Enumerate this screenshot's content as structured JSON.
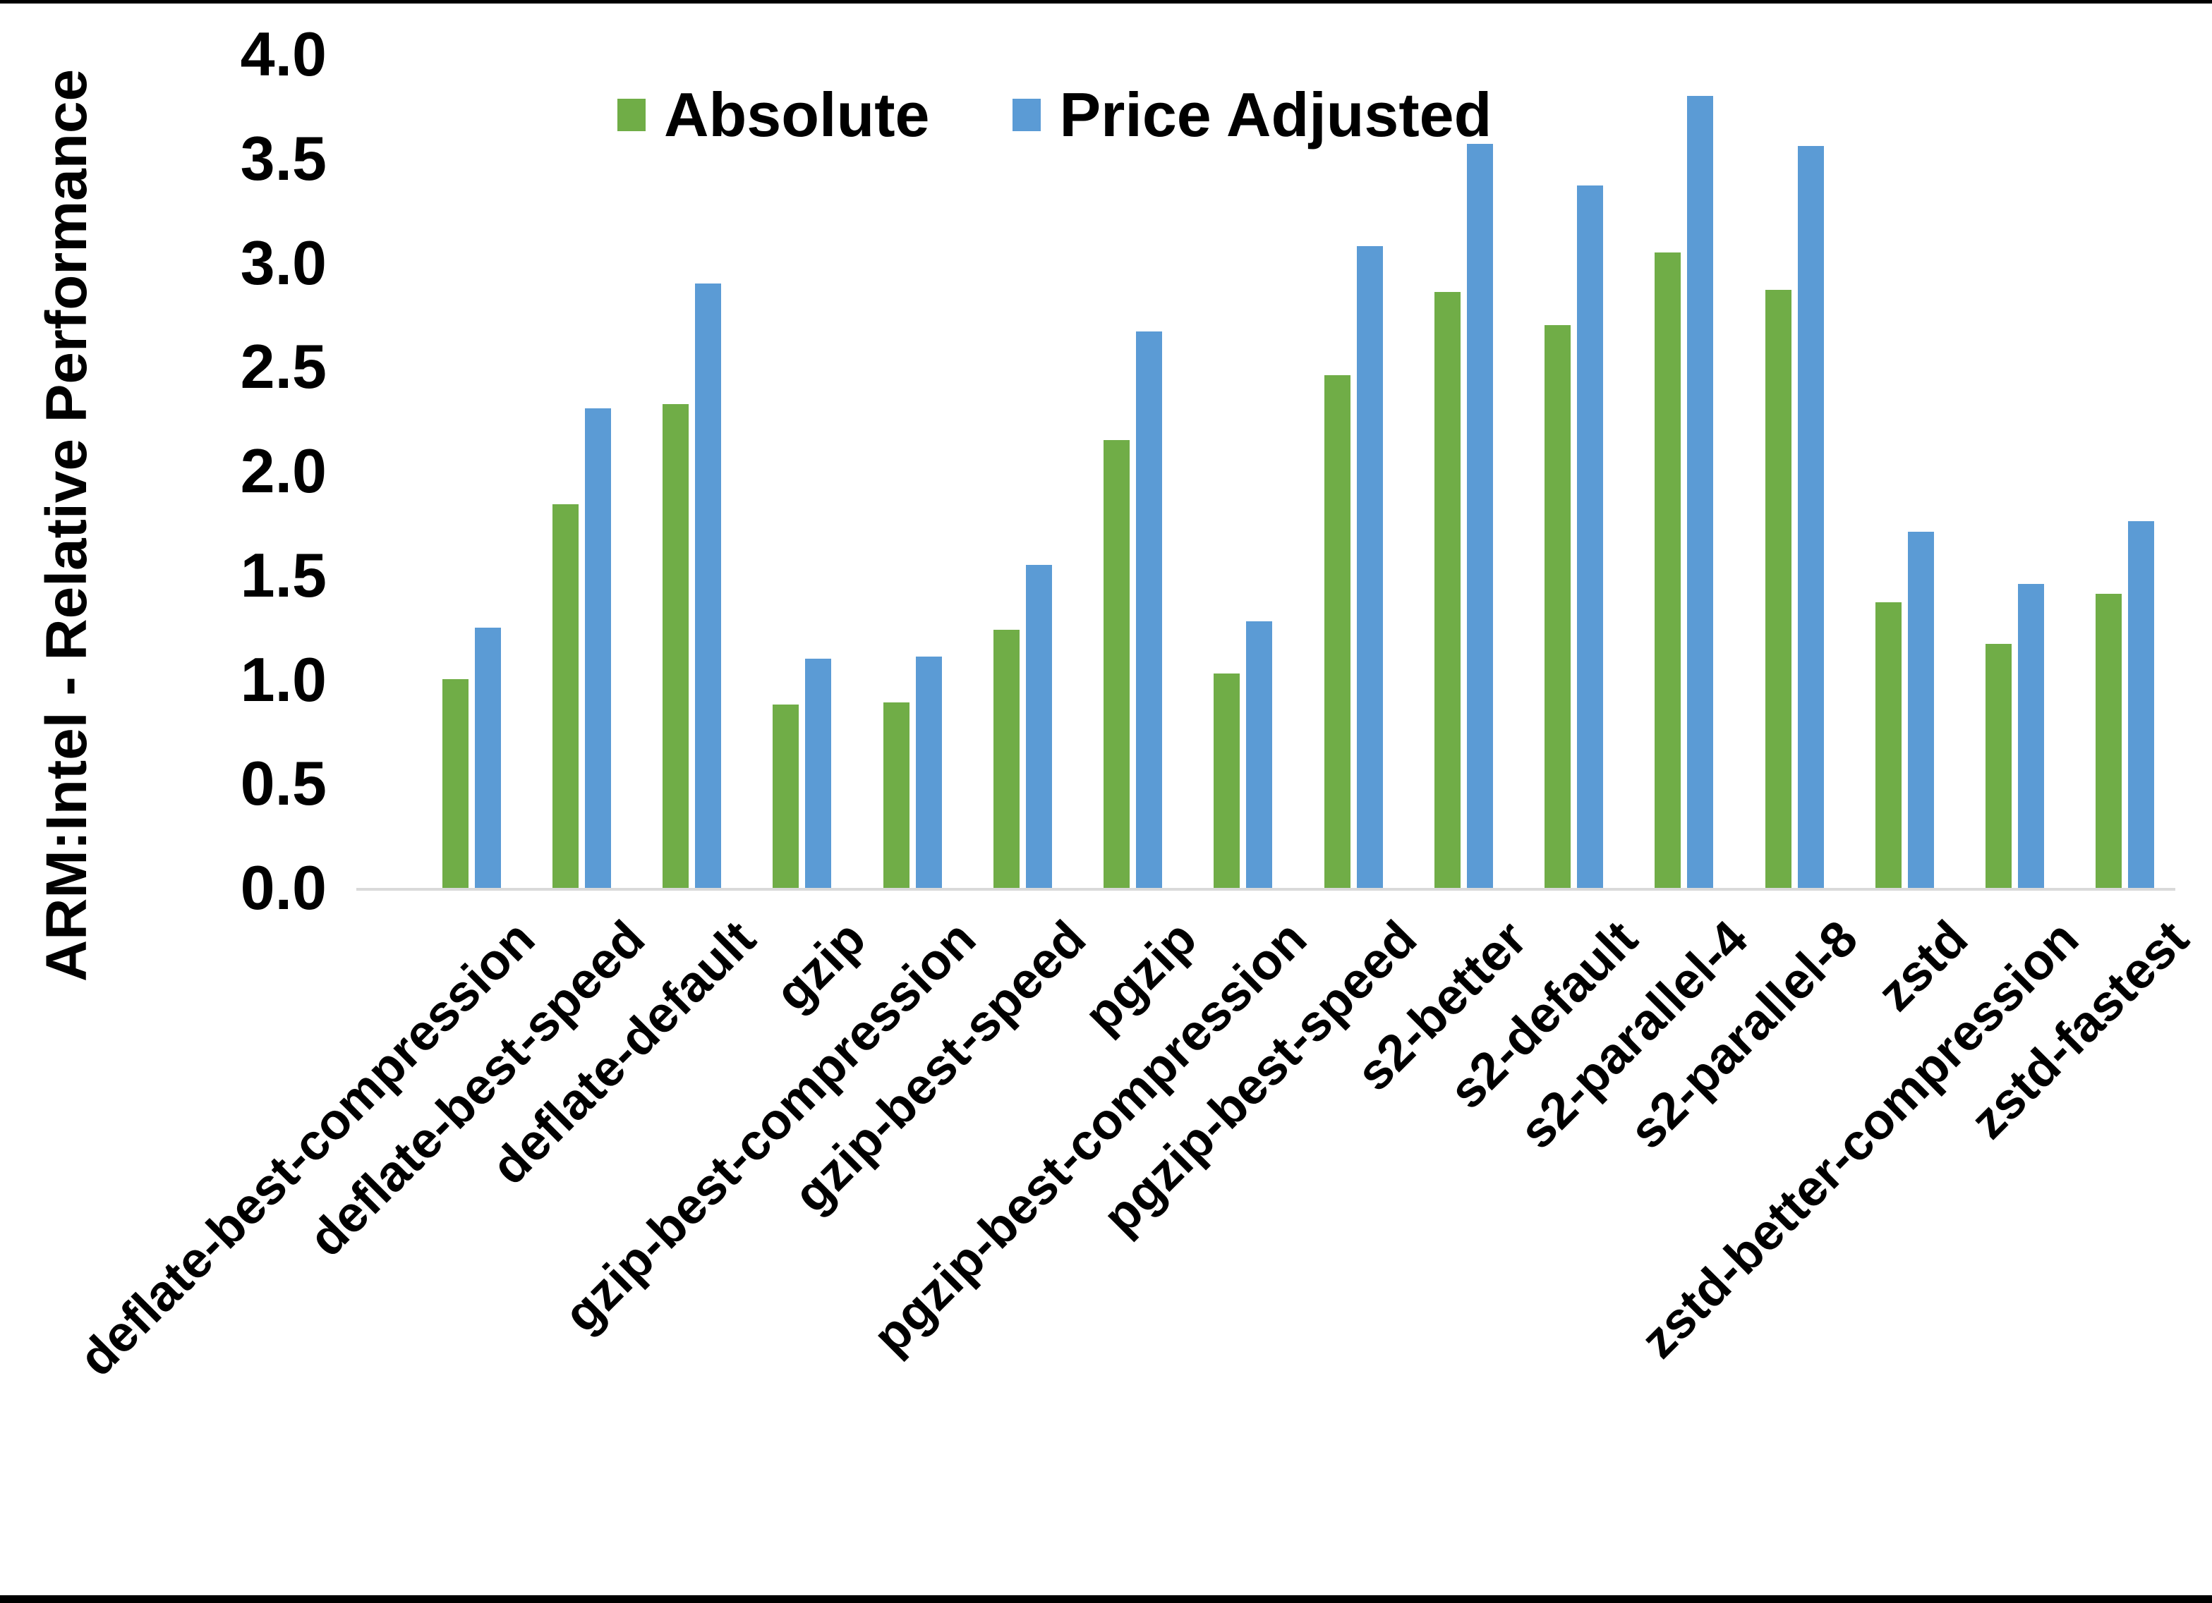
{
  "chart_data": {
    "type": "bar",
    "title": "",
    "xlabel": "",
    "ylabel": "ARM:Intel - Relative Performance",
    "ylim": [
      0.0,
      4.0
    ],
    "ytick_step": 0.5,
    "yticks": [
      "0.0",
      "0.5",
      "1.0",
      "1.5",
      "2.0",
      "2.5",
      "3.0",
      "3.5",
      "4.0"
    ],
    "grid": false,
    "legend_position": "top-center",
    "background_color": "#FFFFFF",
    "axis_line_color": "#D9D9D9",
    "text_color": "#000000",
    "categories": [
      "deflate-best-compression",
      "deflate-best-speed",
      "deflate-default",
      "gzip",
      "gzip-best-compression",
      "gzip-best-speed",
      "pgzip",
      "pgzip-best-compression",
      "pgzip-best-speed",
      "s2-better",
      "s2-default",
      "s2-parallel-4",
      "s2-parallel-8",
      "zstd",
      "zstd-better-compression",
      "zstd-fastest"
    ],
    "series": [
      {
        "name": "Absolute",
        "color": "#70AD47",
        "values": [
          1.0,
          1.84,
          2.32,
          0.88,
          0.89,
          1.24,
          2.15,
          1.03,
          2.46,
          2.86,
          2.7,
          3.05,
          2.87,
          1.37,
          1.17,
          1.41
        ]
      },
      {
        "name": "Price Adjusted",
        "color": "#5B9BD5",
        "values": [
          1.25,
          2.3,
          2.9,
          1.1,
          1.11,
          1.55,
          2.67,
          1.28,
          3.08,
          3.57,
          3.37,
          3.8,
          3.56,
          1.71,
          1.46,
          1.76
        ]
      }
    ]
  }
}
